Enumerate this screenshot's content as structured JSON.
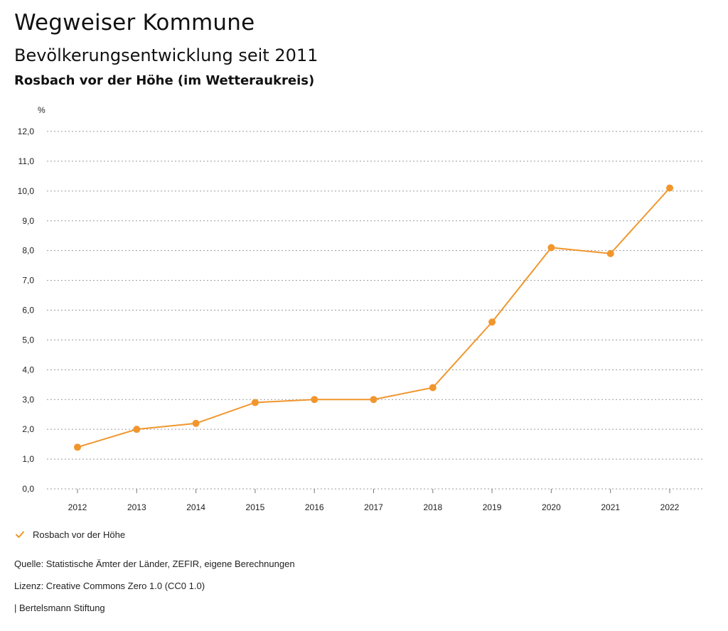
{
  "header": {
    "title": "Wegweiser Kommune",
    "subtitle": "Bevölkerungsentwicklung seit 2011",
    "region": "Rosbach vor der Höhe (im Wetteraukreis)"
  },
  "chart_data": {
    "type": "line",
    "title": "Bevölkerungsentwicklung seit 2011",
    "ylabel": "%",
    "xlabel": "",
    "categories": [
      "2012",
      "2013",
      "2014",
      "2015",
      "2016",
      "2017",
      "2018",
      "2019",
      "2020",
      "2021",
      "2022"
    ],
    "series": [
      {
        "name": "Rosbach vor der Höhe",
        "color": "#f0962d",
        "values": [
          1.4,
          2.0,
          2.2,
          2.9,
          3.0,
          3.0,
          3.4,
          5.6,
          8.1,
          7.9,
          10.1
        ]
      }
    ],
    "ylim": [
      0,
      12
    ],
    "yticks": [
      "0,0",
      "1,0",
      "2,0",
      "3,0",
      "4,0",
      "5,0",
      "6,0",
      "7,0",
      "8,0",
      "9,0",
      "10,0",
      "11,0",
      "12,0"
    ],
    "grid": true,
    "legend": "bottom-left"
  },
  "legend": {
    "label": "Rosbach vor der Höhe",
    "icon": "check-icon",
    "color": "#f0962d"
  },
  "footer": {
    "source": "Quelle: Statistische Ämter der Länder, ZEFIR, eigene Berechnungen",
    "license": "Lizenz: Creative Commons Zero 1.0 (CC0 1.0)",
    "publisher": "| Bertelsmann Stiftung"
  }
}
